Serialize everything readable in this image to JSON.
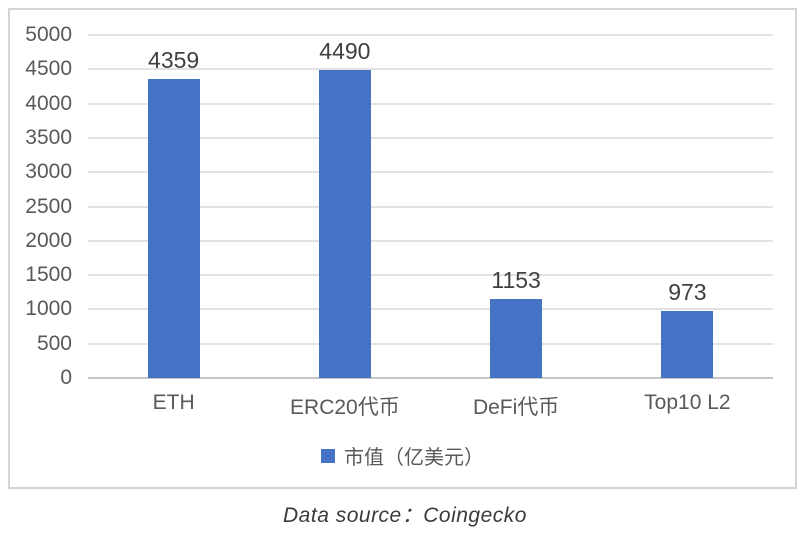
{
  "chart_data": {
    "type": "bar",
    "categories": [
      "ETH",
      "ERC20代币",
      "DeFi代币",
      "Top10 L2"
    ],
    "values": [
      4359,
      4490,
      1153,
      973
    ],
    "series": [
      {
        "name": "市值（亿美元）",
        "values": [
          4359,
          4490,
          1153,
          973
        ]
      }
    ],
    "data_labels": [
      "4359",
      "4490",
      "1153",
      "973"
    ],
    "title": "",
    "xlabel": "",
    "ylabel": "",
    "ylim": [
      0,
      5000
    ],
    "ytick_step": 500,
    "yticks": [
      0,
      500,
      1000,
      1500,
      2000,
      2500,
      3000,
      3500,
      4000,
      4500,
      5000
    ],
    "grid": true,
    "legend_label": "市值（亿美元）",
    "legend_position": "bottom",
    "bar_color": "#4472C4"
  },
  "footer": {
    "note": "Data source：Coingecko"
  },
  "colors": {
    "bar": "#4472C4",
    "axis_text": "#595959",
    "data_label_text": "#404040",
    "gridline": "#e3e3e3",
    "baseline": "#c6c6c6",
    "frame_border": "#d4d4d4"
  }
}
